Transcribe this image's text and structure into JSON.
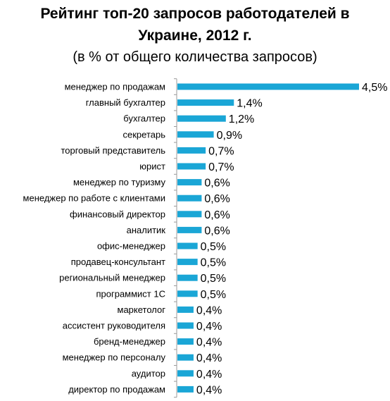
{
  "chart_data": {
    "type": "bar",
    "orientation": "horizontal",
    "title_line1": "Рейтинг топ-20 запросов работодателей в",
    "title_line2": "Украине, 2012 г.",
    "subtitle": "(в % от общего количества запросов)",
    "unit": "%",
    "bar_color": "#1aa6d6",
    "axis_color": "#9a9a9a",
    "xlim": [
      0,
      4.5
    ],
    "grid": false,
    "legend": "none",
    "categories": [
      "менеджер по продажам",
      "главный бухгалтер",
      "бухгалтер",
      "секретарь",
      "торговый представитель",
      "юрист",
      "менеджер по туризму",
      "менеджер по работе с клиентами",
      "финансовый директор",
      "аналитик",
      "офис-менеджер",
      "продавец-консультант",
      "региональный менеджер",
      "программист 1С",
      "маркетолог",
      "ассистент руководителя",
      "бренд-менеджер",
      "менеджер по персоналу",
      "аудитор",
      "директор по продажам"
    ],
    "values": [
      4.5,
      1.4,
      1.2,
      0.9,
      0.7,
      0.7,
      0.6,
      0.6,
      0.6,
      0.6,
      0.5,
      0.5,
      0.5,
      0.5,
      0.4,
      0.4,
      0.4,
      0.4,
      0.4,
      0.4
    ],
    "value_labels": [
      "4,5%",
      "1,4%",
      "1,2%",
      "0,9%",
      "0,7%",
      "0,7%",
      "0,6%",
      "0,6%",
      "0,6%",
      "0,6%",
      "0,5%",
      "0,5%",
      "0,5%",
      "0,5%",
      "0,4%",
      "0,4%",
      "0,4%",
      "0,4%",
      "0,4%",
      "0,4%"
    ]
  }
}
